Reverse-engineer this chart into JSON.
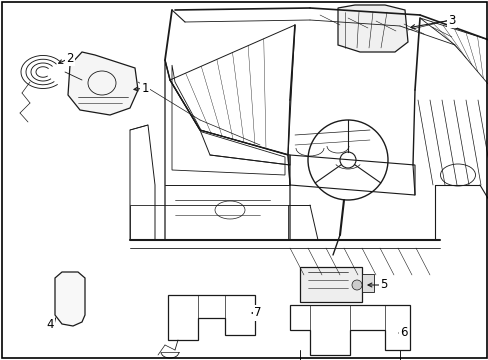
{
  "background_color": "#ffffff",
  "border_color": "#000000",
  "fig_width": 4.89,
  "fig_height": 3.6,
  "dpi": 100,
  "label_fontsize": 8.5,
  "line_color": "#1a1a1a",
  "lw": 0.7
}
